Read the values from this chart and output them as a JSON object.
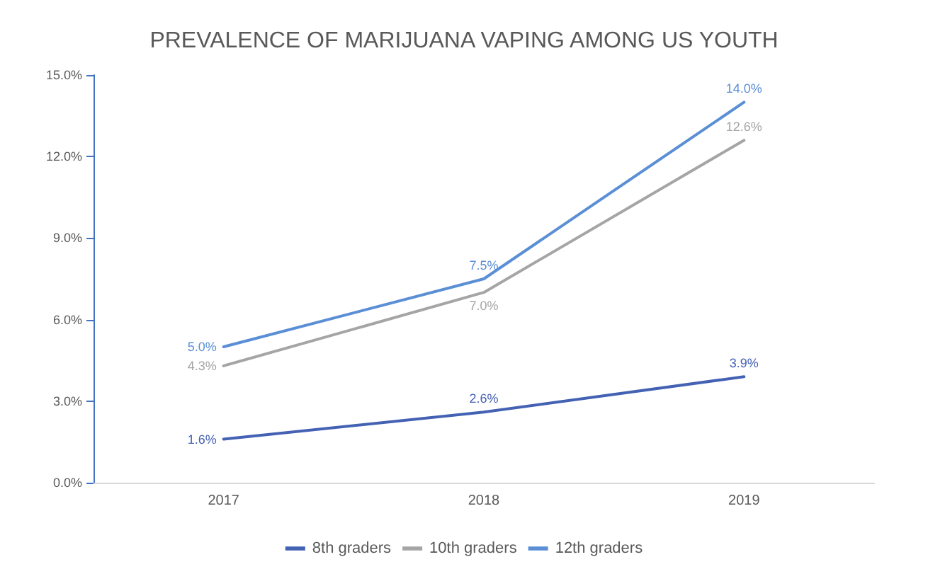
{
  "chart_data": {
    "type": "line",
    "title": "PREVALENCE OF MARIJUANA VAPING AMONG US YOUTH",
    "categories": [
      "2017",
      "2018",
      "2019"
    ],
    "series": [
      {
        "name": "8th graders",
        "color": "#4462b4",
        "values": [
          1.6,
          2.6,
          3.9
        ],
        "value_labels": [
          "1.6%",
          "2.6%",
          "3.9%"
        ]
      },
      {
        "name": "10th graders",
        "color": "#a5a5a5",
        "values": [
          4.3,
          7.0,
          12.6
        ],
        "value_labels": [
          "4.3%",
          "7.0%",
          "12.6%"
        ]
      },
      {
        "name": "12th graders",
        "color": "#5b8fd5",
        "values": [
          5.0,
          7.5,
          14.0
        ],
        "value_labels": [
          "5.0%",
          "7.5%",
          "14.0%"
        ]
      }
    ],
    "ylim": [
      0,
      15
    ],
    "yticks": [
      {
        "value": 0,
        "label": "0.0%"
      },
      {
        "value": 3,
        "label": "3.0%"
      },
      {
        "value": 6,
        "label": "6.0%"
      },
      {
        "value": 9,
        "label": "9.0%"
      },
      {
        "value": 12,
        "label": "12.0%"
      },
      {
        "value": 15,
        "label": "15.0%"
      }
    ],
    "grid": false,
    "legend": "bottom",
    "marker": "none",
    "line_style": "solid"
  }
}
